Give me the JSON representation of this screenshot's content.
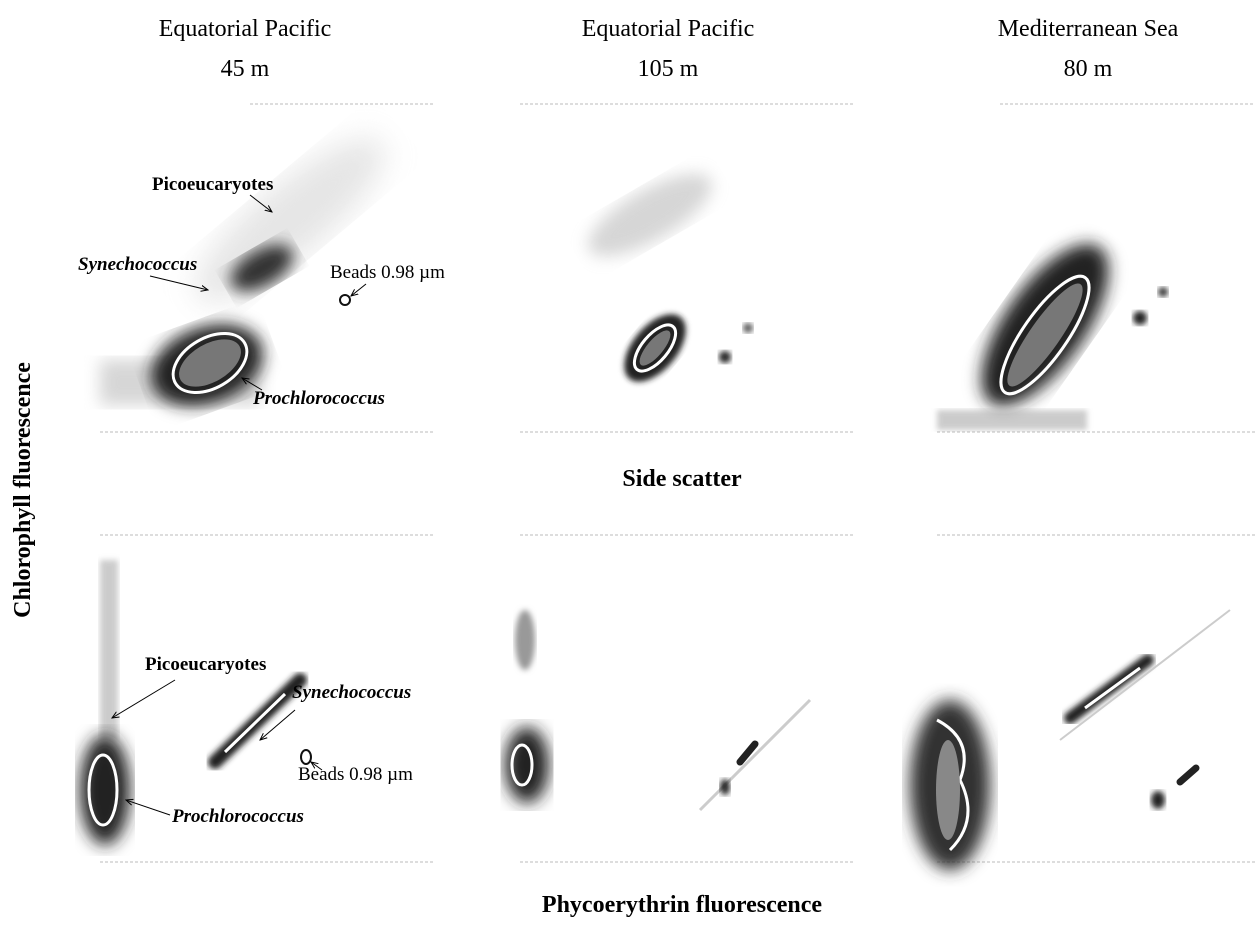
{
  "columns": [
    {
      "title": "Equatorial Pacific",
      "depth": "45 m"
    },
    {
      "title": "Equatorial Pacific",
      "depth": "105 m"
    },
    {
      "title": "Mediterranean Sea",
      "depth": "80 m"
    }
  ],
  "y_axis_label": "Chlorophyll fluorescence",
  "top_row_x_label": "Side scatter",
  "bottom_row_x_label": "Phycoerythrin fluorescence",
  "top_left_annotations": {
    "picoeukaryotes": "Picoeucaryotes",
    "synechococcus": "Synechococcus",
    "beads": "Beads 0.98 µm",
    "prochlorococcus": "Prochlorococcus"
  },
  "bottom_left_annotations": {
    "picoeukaryotes": "Picoeucaryotes",
    "synechococcus": "Synechococcus",
    "beads": "Beads 0.98 µm",
    "prochlorococcus": "Prochlorococcus"
  }
}
